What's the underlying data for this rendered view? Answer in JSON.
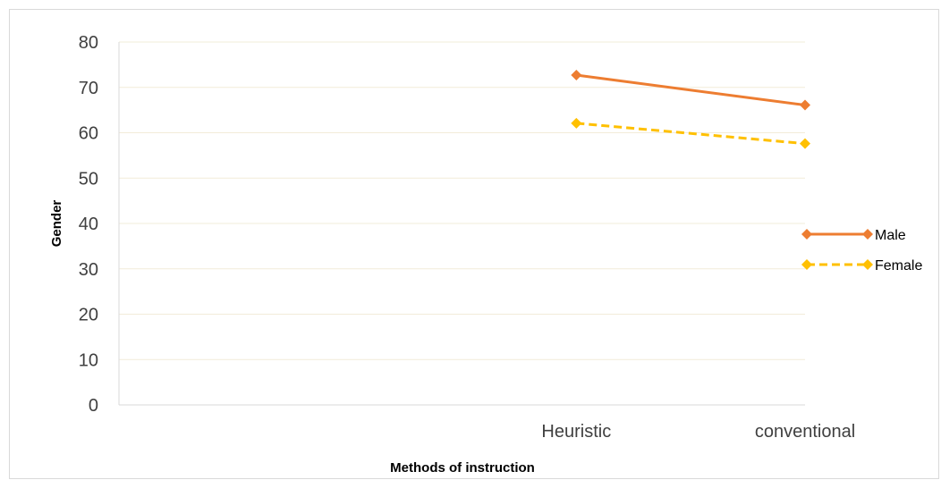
{
  "chart_data": {
    "type": "line",
    "categories": [
      "",
      "Heuristic",
      "conventional"
    ],
    "series": [
      {
        "name": "Male",
        "values": [
          null,
          72.7,
          66.1
        ],
        "color": "#ED7D31",
        "dash": "solid"
      },
      {
        "name": "Female",
        "values": [
          null,
          62.1,
          57.6
        ],
        "color": "#FFC000",
        "dash": "dashed"
      }
    ],
    "xlabel": "Methods of instruction",
    "ylabel": "Gender",
    "ylim": [
      0,
      80
    ],
    "yticks": [
      0,
      10,
      20,
      30,
      40,
      50,
      60,
      70,
      80
    ],
    "grid": true,
    "legend": "right"
  }
}
